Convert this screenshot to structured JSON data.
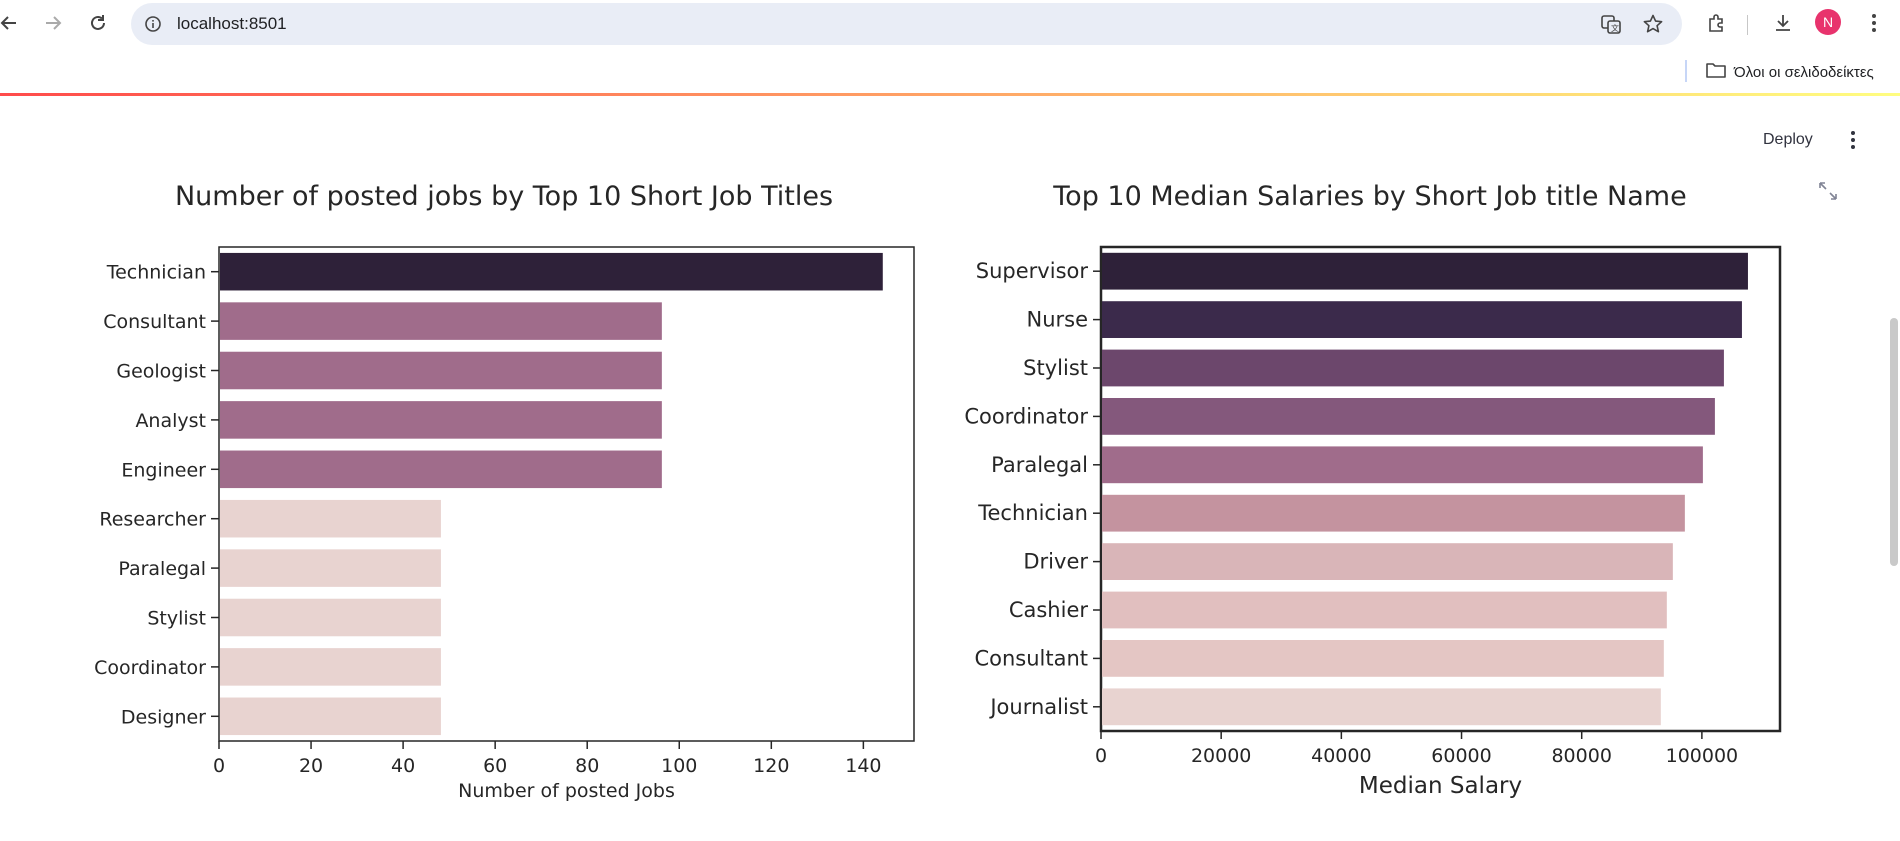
{
  "browser": {
    "url": "localhost:8501",
    "bookmarks_folder_label": "Όλοι οι σελιδοδείκτες",
    "avatar_initial": "N",
    "icons": [
      "back-arrow-icon",
      "forward-arrow-icon",
      "reload-icon",
      "site-info-icon",
      "translate-icon",
      "star-icon",
      "extensions-icon",
      "download-icon",
      "menu-kebab-icon",
      "folder-icon"
    ]
  },
  "app": {
    "deploy_label": "Deploy",
    "decoration_colors": [
      "#ff4b4b",
      "#fffd80"
    ]
  },
  "chart_data": [
    {
      "type": "bar",
      "orientation": "horizontal",
      "title": "Number of posted jobs by Top 10 Short Job Titles",
      "xlabel": "Number of posted Jobs",
      "ylabel": "",
      "categories": [
        "Technician",
        "Consultant",
        "Geologist",
        "Analyst",
        "Engineer",
        "Researcher",
        "Paralegal",
        "Stylist",
        "Coordinator",
        "Designer"
      ],
      "values": [
        144,
        96,
        96,
        96,
        96,
        48,
        48,
        48,
        48,
        48
      ],
      "colors": [
        "#2e2139",
        "#a06c8b",
        "#a06c8b",
        "#a06c8b",
        "#a06c8b",
        "#e8d3d0",
        "#e8d3d0",
        "#e8d3d0",
        "#e8d3d0",
        "#e8d3d0"
      ],
      "xlim": [
        0,
        151
      ],
      "xticks": [
        0,
        20,
        40,
        60,
        80,
        100,
        120,
        140
      ]
    },
    {
      "type": "bar",
      "orientation": "horizontal",
      "title": "Top 10 Median Salaries by Short Job title Name",
      "xlabel": "Median Salary",
      "ylabel": "",
      "categories": [
        "Supervisor",
        "Nurse",
        "Stylist",
        "Coordinator",
        "Paralegal",
        "Technician",
        "Driver",
        "Cashier",
        "Consultant",
        "Journalist"
      ],
      "values": [
        107500,
        106500,
        103500,
        102000,
        100000,
        97000,
        95000,
        94000,
        93500,
        93000
      ],
      "colors": [
        "#2e2139",
        "#3b2a4b",
        "#6c476c",
        "#84587c",
        "#a06c8b",
        "#c4939f",
        "#d9b5b8",
        "#e1bfbf",
        "#e4c6c4",
        "#e8d3d0"
      ],
      "xlim": [
        0,
        113000
      ],
      "xticks": [
        0,
        20000,
        40000,
        60000,
        80000,
        100000
      ]
    }
  ]
}
